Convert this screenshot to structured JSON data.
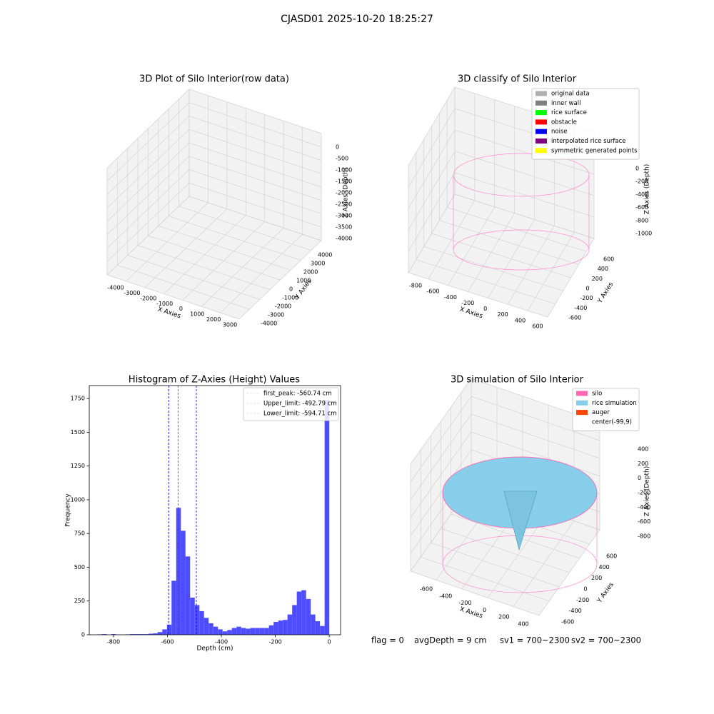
{
  "title": "CJASD01 2025-10-20 18:25:27",
  "status": [
    "flag = 0",
    "avgDepth = 9 cm",
    "sv1 = 700~2300",
    "sv2 = 700~2300"
  ],
  "chart_data": [
    {
      "type": "scatter3d",
      "title": "3D Plot of Silo Interior(row data)",
      "xlabel": "X Axies",
      "ylabel": "Y Axies",
      "zlabel": "Z Axies (Depth)",
      "grid": true,
      "xlim": [
        -4000,
        3000
      ],
      "ylim": [
        -4000,
        4000
      ],
      "zlim": [
        -4000,
        0
      ],
      "xticks": [
        -4000,
        -3000,
        -2000,
        -1000,
        0,
        1000,
        2000,
        3000
      ],
      "yticks": [
        -4000,
        -3000,
        -2000,
        -1000,
        0,
        1000,
        2000,
        3000,
        4000
      ],
      "zticks": [
        -4000,
        -3500,
        -3000,
        -2500,
        -2000,
        -1500,
        -1000,
        -500,
        0
      ]
    },
    {
      "type": "scatter3d",
      "title": "3D classify of Silo Interior",
      "xlabel": "X Axies",
      "ylabel": "Y Axies",
      "zlabel": "Z Axies (Depth)",
      "grid": true,
      "xlim": [
        -800,
        600
      ],
      "ylim": [
        -600,
        600
      ],
      "zlim": [
        -1000,
        0
      ],
      "xticks": [
        -800,
        -600,
        -400,
        -200,
        0,
        200,
        400,
        600
      ],
      "yticks": [
        -600,
        -400,
        -200,
        0,
        200,
        400,
        600
      ],
      "zticks": [
        -1000,
        -800,
        -600,
        -400,
        -200,
        0
      ],
      "legend_position": "upper right",
      "legend": [
        {
          "name": "original data",
          "color": "#b0b0b0"
        },
        {
          "name": "inner wall",
          "color": "#808080"
        },
        {
          "name": "rice surface",
          "color": "#00ff00"
        },
        {
          "name": "obstacle",
          "color": "#ff0000"
        },
        {
          "name": "noise",
          "color": "#0000ff"
        },
        {
          "name": "interpolated rice surface",
          "color": "#800080"
        },
        {
          "name": "symmetric generated points",
          "color": "#ffff00"
        }
      ]
    },
    {
      "type": "histogram",
      "title": "Histogram of Z-Axies (Height) Values",
      "xlabel": "Depth (cm)",
      "ylabel": "Frequency",
      "color": "#4d4dff",
      "xlim": [
        -890,
        42
      ],
      "ylim": [
        0,
        1846
      ],
      "xticks": [
        -800,
        -600,
        -400,
        -200,
        0
      ],
      "yticks": [
        0,
        250,
        500,
        750,
        1000,
        1250,
        1500,
        1750
      ],
      "bins": [
        -860,
        -842.8,
        -825.6,
        -808.4,
        -791.2,
        -774,
        -756.8,
        -739.6,
        -722.4,
        -705.2,
        -688,
        -670.8,
        -653.6,
        -636.4,
        -619.2,
        -602,
        -584.8,
        -567.6,
        -550.4,
        -533.2,
        -516,
        -498.8,
        -481.6,
        -464.4,
        -447.2,
        -430,
        -412.8,
        -395.6,
        -378.4,
        -361.2,
        -344,
        -326.8,
        -309.6,
        -292.4,
        -275.2,
        -258,
        -240.8,
        -223.6,
        -206.4,
        -189.2,
        -172,
        -154.8,
        -137.6,
        -120.4,
        -103.2,
        -86,
        -68.8,
        -51.6,
        -34.4,
        -17.2,
        0
      ],
      "counts": [
        3,
        5,
        0,
        5,
        2,
        0,
        3,
        5,
        5,
        5,
        5,
        8,
        10,
        20,
        40,
        75,
        400,
        940,
        770,
        580,
        275,
        220,
        175,
        125,
        85,
        60,
        40,
        25,
        35,
        50,
        60,
        50,
        45,
        50,
        50,
        50,
        50,
        70,
        95,
        105,
        110,
        150,
        220,
        320,
        330,
        265,
        150,
        100,
        65,
        1740
      ],
      "legend_position": "upper right",
      "vlines": [
        {
          "label": "first_peak: -560.74 cm",
          "value": -560.74,
          "color": "#ff0000"
        },
        {
          "label": "Upper_limit: -492.79 cm",
          "value": -492.79,
          "color": "#0000ff"
        },
        {
          "label": "Lower_limit: -594.71 cm",
          "value": -594.71,
          "color": "#0000ff"
        }
      ]
    },
    {
      "type": "surface3d",
      "title": "3D simulation of Silo Interior",
      "xlabel": "X Axies",
      "ylabel": "Y Axies",
      "zlabel": "Z Axies (Depth)",
      "grid": true,
      "xlim": [
        -600,
        400
      ],
      "ylim": [
        -600,
        600
      ],
      "zlim": [
        -800,
        400
      ],
      "xticks": [
        -600,
        -400,
        -200,
        0,
        200,
        400
      ],
      "yticks": [
        -600,
        -400,
        -200,
        0,
        200,
        400,
        600
      ],
      "zticks": [
        -800,
        -600,
        -400,
        -200,
        0,
        200,
        400
      ],
      "legend_position": "upper right",
      "legend": [
        {
          "name": "silo",
          "color": "#ff69b4"
        },
        {
          "name": "rice simulation",
          "color": "#87ceeb"
        },
        {
          "name": "auger",
          "color": "#ff4500"
        },
        {
          "name": "center(-99,9)"
        }
      ]
    }
  ]
}
